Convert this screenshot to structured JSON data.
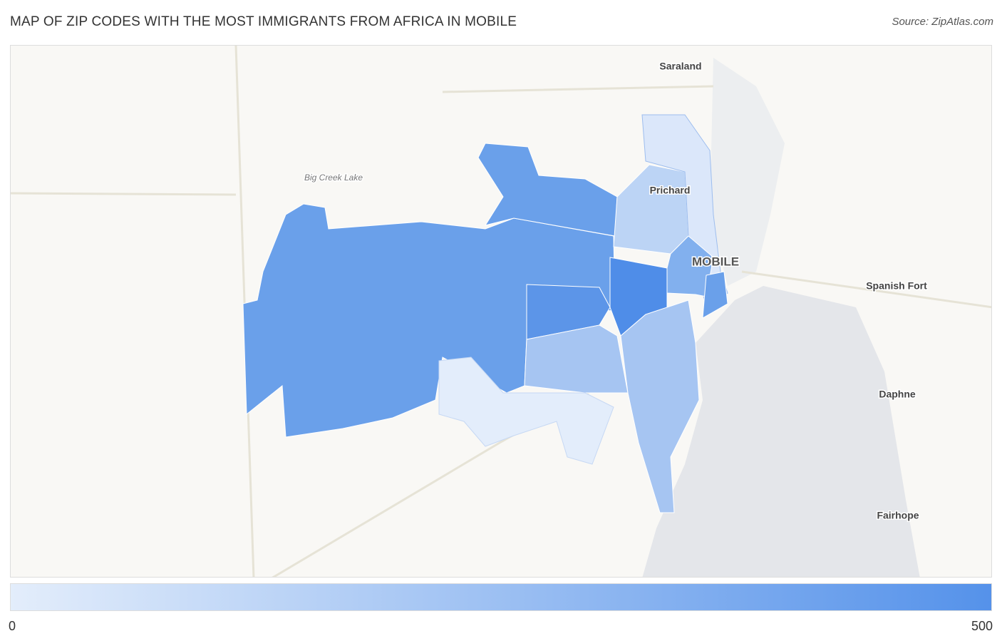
{
  "title": "MAP OF ZIP CODES WITH THE MOST IMMIGRANTS FROM AFRICA IN MOBILE",
  "source": "Source: ZipAtlas.com",
  "places": [
    "Saraland",
    "Big Creek Lake",
    "Prichard",
    "MOBILE",
    "Spanish Fort",
    "Daphne",
    "Fairhope"
  ],
  "legend": {
    "min": 0,
    "max": 500
  }
}
